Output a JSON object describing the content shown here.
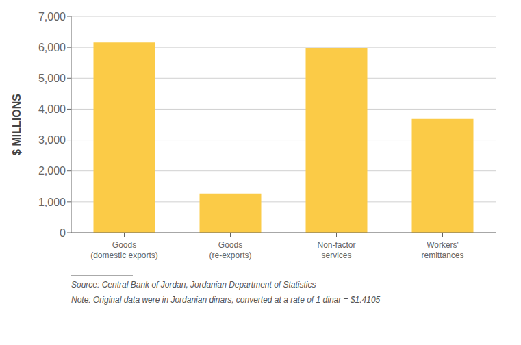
{
  "chart_data": {
    "type": "bar",
    "categories": [
      "Goods\n(domestic exports)",
      "Goods\n(re-exports)",
      "Non-factor\nservices",
      "Workers'\nremittances"
    ],
    "values": [
      6150,
      1270,
      5980,
      3680
    ],
    "color": "#FBCB47",
    "ylabel": "$ MILLIONS",
    "ylim": [
      0,
      7000
    ],
    "yticks": [
      0,
      {
        "value": 1000,
        "label": "1,000"
      },
      {
        "value": 2000,
        "label": "2,000"
      },
      {
        "value": 3000,
        "label": "3,000"
      },
      {
        "value": 4000,
        "label": "4,000"
      },
      {
        "value": 5000,
        "label": "5,000"
      },
      {
        "value": 6000,
        "label": "6,000"
      },
      {
        "value": 7000,
        "label": "7,000"
      }
    ],
    "grid": true,
    "annotations": [
      "Source: Central Bank of Jordan, Jordanian Department of Statistics",
      "Note: Original data were in Jordanian dinars, converted at a rate of 1 dinar = $1.4105"
    ]
  }
}
